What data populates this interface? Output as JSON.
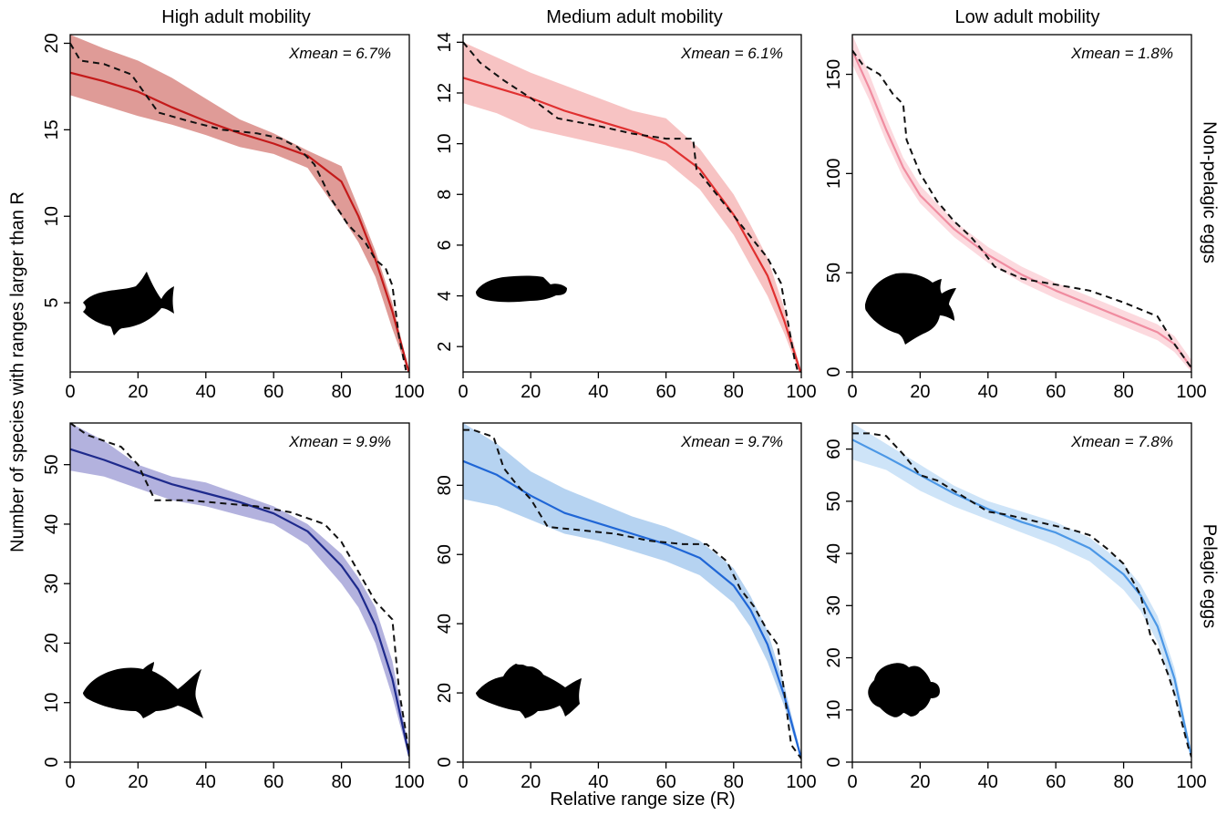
{
  "figure": {
    "col_titles": [
      "High adult mobility",
      "Medium adult mobility",
      "Low adult mobility"
    ],
    "row_titles": [
      "Non-pelagic eggs",
      "Pelagic eggs"
    ],
    "xlabel": "Relative range size (R)",
    "ylabel": "Number of species with ranges larger than R"
  },
  "chart_data": [
    {
      "type": "line",
      "panel": "top-left",
      "annotation": "Xmean = 6.7%",
      "xlim": [
        0,
        100
      ],
      "ylim": [
        1,
        20.5
      ],
      "xticks": [
        0,
        20,
        40,
        60,
        80,
        100
      ],
      "yticks": [
        5,
        10,
        15,
        20
      ],
      "colors": {
        "line": "#c41a1a",
        "band": "#d98a85"
      },
      "icon": "triggerfish-silhouette-icon",
      "series": [
        {
          "role": "model-band-upper",
          "x": [
            0,
            10,
            20,
            30,
            40,
            50,
            60,
            70,
            80,
            85,
            90,
            95,
            100
          ],
          "y": [
            20.5,
            19.7,
            19.0,
            18.0,
            16.8,
            15.6,
            14.8,
            13.8,
            12.9,
            10.5,
            8.0,
            5.0,
            1.0
          ]
        },
        {
          "role": "model",
          "x": [
            0,
            10,
            20,
            30,
            40,
            50,
            60,
            70,
            80,
            85,
            90,
            95,
            100
          ],
          "y": [
            18.3,
            17.8,
            17.2,
            16.3,
            15.5,
            14.8,
            14.2,
            13.5,
            12.0,
            10.0,
            7.5,
            4.5,
            0.9
          ]
        },
        {
          "role": "model-band-lower",
          "x": [
            0,
            10,
            20,
            30,
            40,
            50,
            60,
            70,
            80,
            85,
            90,
            95,
            100
          ],
          "y": [
            17.0,
            16.4,
            15.8,
            15.3,
            14.7,
            14.0,
            13.6,
            12.8,
            10.0,
            8.5,
            6.5,
            3.5,
            0.8
          ]
        },
        {
          "role": "observed",
          "x": [
            0,
            3,
            10,
            18,
            26,
            35,
            45,
            55,
            62,
            67,
            72,
            77,
            82,
            87,
            90,
            93,
            95,
            97,
            99
          ],
          "y": [
            20.0,
            19.0,
            18.8,
            18.2,
            16.0,
            15.5,
            15.0,
            14.8,
            14.5,
            14.0,
            13.0,
            11.0,
            9.5,
            8.5,
            7.5,
            7.0,
            6.0,
            3.0,
            1.1
          ]
        }
      ]
    },
    {
      "type": "line",
      "panel": "top-middle",
      "annotation": "Xmean = 6.1%",
      "xlim": [
        0,
        100
      ],
      "ylim": [
        1,
        14.3
      ],
      "xticks": [
        0,
        20,
        40,
        60,
        80,
        100
      ],
      "yticks": [
        2,
        4,
        6,
        8,
        10,
        12,
        14
      ],
      "colors": {
        "line": "#e03030",
        "band": "#f6b8b8"
      },
      "icon": "wrasse-silhouette-icon",
      "series": [
        {
          "role": "model-band-upper",
          "x": [
            0,
            10,
            20,
            30,
            40,
            50,
            60,
            70,
            80,
            85,
            90,
            95,
            100
          ],
          "y": [
            14.0,
            13.4,
            12.8,
            12.3,
            11.8,
            11.3,
            11.0,
            9.8,
            8.0,
            6.8,
            5.5,
            3.5,
            1.0
          ]
        },
        {
          "role": "model",
          "x": [
            0,
            10,
            20,
            30,
            40,
            50,
            60,
            70,
            80,
            85,
            90,
            95,
            100
          ],
          "y": [
            12.6,
            12.2,
            11.8,
            11.3,
            10.9,
            10.5,
            10.0,
            9.0,
            7.2,
            6.0,
            4.8,
            3.0,
            0.9
          ]
        },
        {
          "role": "model-band-lower",
          "x": [
            0,
            10,
            20,
            30,
            40,
            50,
            60,
            70,
            80,
            85,
            90,
            95,
            100
          ],
          "y": [
            11.6,
            11.2,
            10.6,
            10.3,
            10.0,
            9.7,
            9.3,
            8.2,
            6.4,
            5.2,
            4.0,
            2.5,
            0.8
          ]
        },
        {
          "role": "observed",
          "x": [
            0,
            5,
            12,
            20,
            28,
            40,
            50,
            60,
            68,
            69,
            72,
            78,
            84,
            90,
            94,
            96,
            98,
            99
          ],
          "y": [
            14.0,
            13.2,
            12.5,
            11.8,
            11.0,
            10.7,
            10.4,
            10.2,
            10.2,
            9.0,
            8.5,
            7.5,
            6.5,
            5.5,
            4.5,
            3.0,
            1.5,
            1.0
          ]
        }
      ]
    },
    {
      "type": "line",
      "panel": "top-right",
      "annotation": "Xmean = 1.8%",
      "xlim": [
        0,
        100
      ],
      "ylim": [
        0,
        170
      ],
      "xticks": [
        0,
        20,
        40,
        60,
        80,
        100
      ],
      "yticks": [
        0,
        50,
        100,
        150
      ],
      "colors": {
        "line": "#f08ca0",
        "band": "#fbd2d8"
      },
      "icon": "damselfish-silhouette-icon",
      "series": [
        {
          "role": "model-band-upper",
          "x": [
            0,
            5,
            10,
            15,
            20,
            30,
            40,
            50,
            60,
            70,
            80,
            90,
            95,
            100
          ],
          "y": [
            170,
            150,
            128,
            108,
            94,
            76,
            63,
            53,
            45,
            38,
            31,
            24,
            18,
            6
          ]
        },
        {
          "role": "model",
          "x": [
            0,
            5,
            10,
            15,
            20,
            30,
            40,
            50,
            60,
            70,
            80,
            90,
            95,
            100
          ],
          "y": [
            162,
            143,
            122,
            103,
            89,
            72,
            59,
            49,
            41,
            34,
            27,
            20,
            14,
            2
          ]
        },
        {
          "role": "model-band-lower",
          "x": [
            0,
            5,
            10,
            15,
            20,
            30,
            40,
            50,
            60,
            70,
            80,
            90,
            95,
            100
          ],
          "y": [
            155,
            137,
            116,
            98,
            85,
            68,
            55,
            45,
            37,
            30,
            23,
            16,
            10,
            0
          ]
        },
        {
          "role": "observed",
          "x": [
            0,
            3,
            8,
            12,
            15,
            16,
            20,
            25,
            30,
            35,
            38,
            42,
            50,
            60,
            70,
            80,
            90,
            95,
            100
          ],
          "y": [
            162,
            155,
            150,
            140,
            135,
            117,
            100,
            86,
            76,
            68,
            62,
            53,
            47,
            44,
            41,
            35,
            28,
            14,
            2
          ]
        }
      ]
    },
    {
      "type": "line",
      "panel": "bottom-left",
      "annotation": "Xmean = 9.9%",
      "xlim": [
        0,
        100
      ],
      "ylim": [
        0,
        57
      ],
      "xticks": [
        0,
        20,
        40,
        60,
        80,
        100
      ],
      "yticks": [
        0,
        10,
        20,
        30,
        40,
        50
      ],
      "colors": {
        "line": "#1e2a8c",
        "band": "#a6a4d8"
      },
      "icon": "jack-silhouette-icon",
      "series": [
        {
          "role": "model-band-upper",
          "x": [
            0,
            10,
            20,
            30,
            40,
            50,
            60,
            70,
            80,
            85,
            90,
            95,
            100
          ],
          "y": [
            57,
            54,
            50,
            48,
            47,
            45,
            43,
            40,
            35,
            31,
            26,
            17,
            2
          ]
        },
        {
          "role": "model",
          "x": [
            0,
            10,
            20,
            30,
            40,
            50,
            60,
            70,
            80,
            85,
            90,
            95,
            100
          ],
          "y": [
            52.6,
            50.8,
            48.7,
            46.7,
            45.2,
            43.7,
            41.8,
            38.8,
            33.0,
            29.0,
            23.0,
            14.0,
            1.0
          ]
        },
        {
          "role": "model-band-lower",
          "x": [
            0,
            10,
            20,
            30,
            40,
            50,
            60,
            70,
            80,
            85,
            90,
            95,
            100
          ],
          "y": [
            49,
            48,
            46,
            44,
            43,
            41.5,
            40,
            36.5,
            30,
            26,
            20,
            11,
            0.5
          ]
        },
        {
          "role": "observed",
          "x": [
            0,
            5,
            15,
            20,
            25,
            35,
            45,
            55,
            65,
            70,
            75,
            80,
            85,
            90,
            95,
            97,
            99,
            100
          ],
          "y": [
            57,
            55,
            53,
            50,
            44,
            44,
            43.5,
            43,
            42,
            41,
            40,
            37,
            32,
            27,
            24,
            12,
            5,
            1
          ]
        }
      ]
    },
    {
      "type": "line",
      "panel": "bottom-middle",
      "annotation": "Xmean = 9.7%",
      "xlim": [
        0,
        100
      ],
      "ylim": [
        0,
        98
      ],
      "xticks": [
        0,
        20,
        40,
        60,
        80,
        100
      ],
      "yticks": [
        0,
        20,
        40,
        60,
        80
      ],
      "colors": {
        "line": "#1f66d6",
        "band": "#a9cbee"
      },
      "icon": "grouper-silhouette-icon",
      "series": [
        {
          "role": "model-band-upper",
          "x": [
            0,
            10,
            20,
            30,
            40,
            50,
            60,
            70,
            80,
            85,
            90,
            95,
            100
          ],
          "y": [
            98,
            92,
            84,
            79,
            75,
            71,
            68,
            64,
            56,
            48,
            38,
            22,
            2
          ]
        },
        {
          "role": "model",
          "x": [
            0,
            10,
            20,
            30,
            40,
            50,
            60,
            70,
            80,
            85,
            90,
            95,
            100
          ],
          "y": [
            87,
            83,
            77,
            72,
            69,
            66,
            63,
            59,
            51,
            44,
            34,
            19,
            1
          ]
        },
        {
          "role": "model-band-lower",
          "x": [
            0,
            10,
            20,
            30,
            40,
            50,
            60,
            70,
            80,
            85,
            90,
            95,
            100
          ],
          "y": [
            76,
            74,
            70,
            66,
            64,
            61,
            58,
            54,
            46,
            39,
            29,
            16,
            0.5
          ]
        },
        {
          "role": "observed",
          "x": [
            0,
            3,
            9,
            12,
            16,
            20,
            25,
            35,
            45,
            55,
            65,
            72,
            78,
            82,
            86,
            90,
            93,
            95,
            97,
            100
          ],
          "y": [
            96,
            96,
            94,
            85,
            80,
            76,
            68,
            67,
            66,
            64,
            63,
            63,
            58,
            50,
            45,
            38,
            34,
            20,
            5,
            1
          ]
        }
      ]
    },
    {
      "type": "line",
      "panel": "bottom-right",
      "annotation": "Xmean = 7.8%",
      "xlim": [
        0,
        100
      ],
      "ylim": [
        0,
        65
      ],
      "xticks": [
        0,
        20,
        40,
        60,
        80,
        100
      ],
      "yticks": [
        0,
        10,
        20,
        30,
        40,
        50,
        60
      ],
      "colors": {
        "line": "#4b97e6",
        "band": "#c6dff7"
      },
      "icon": "frogfish-silhouette-icon",
      "series": [
        {
          "role": "model-band-upper",
          "x": [
            0,
            10,
            20,
            30,
            40,
            50,
            60,
            70,
            80,
            85,
            90,
            95,
            100
          ],
          "y": [
            65,
            61,
            57,
            53,
            50,
            48,
            46,
            43,
            38,
            34,
            28,
            18,
            2
          ]
        },
        {
          "role": "model",
          "x": [
            0,
            10,
            20,
            30,
            40,
            50,
            60,
            70,
            80,
            85,
            90,
            95,
            100
          ],
          "y": [
            61.8,
            58.5,
            55,
            51.5,
            48.5,
            46,
            44,
            41,
            36,
            32,
            26,
            16,
            1
          ]
        },
        {
          "role": "model-band-lower",
          "x": [
            0,
            10,
            20,
            30,
            40,
            50,
            60,
            70,
            80,
            85,
            90,
            95,
            100
          ],
          "y": [
            58,
            56,
            52,
            49,
            46.5,
            44,
            41.5,
            38.5,
            33,
            29,
            23,
            13,
            0.5
          ]
        },
        {
          "role": "observed",
          "x": [
            0,
            5,
            10,
            15,
            20,
            25,
            30,
            35,
            40,
            45,
            55,
            65,
            70,
            75,
            80,
            85,
            88,
            90,
            93,
            95,
            97,
            99,
            100
          ],
          "y": [
            63,
            63,
            62.5,
            59,
            55,
            54,
            52,
            50,
            48,
            47.5,
            46,
            44.5,
            43.5,
            41,
            38,
            32,
            24,
            22,
            17,
            13,
            8,
            3,
            1
          ]
        }
      ]
    }
  ]
}
